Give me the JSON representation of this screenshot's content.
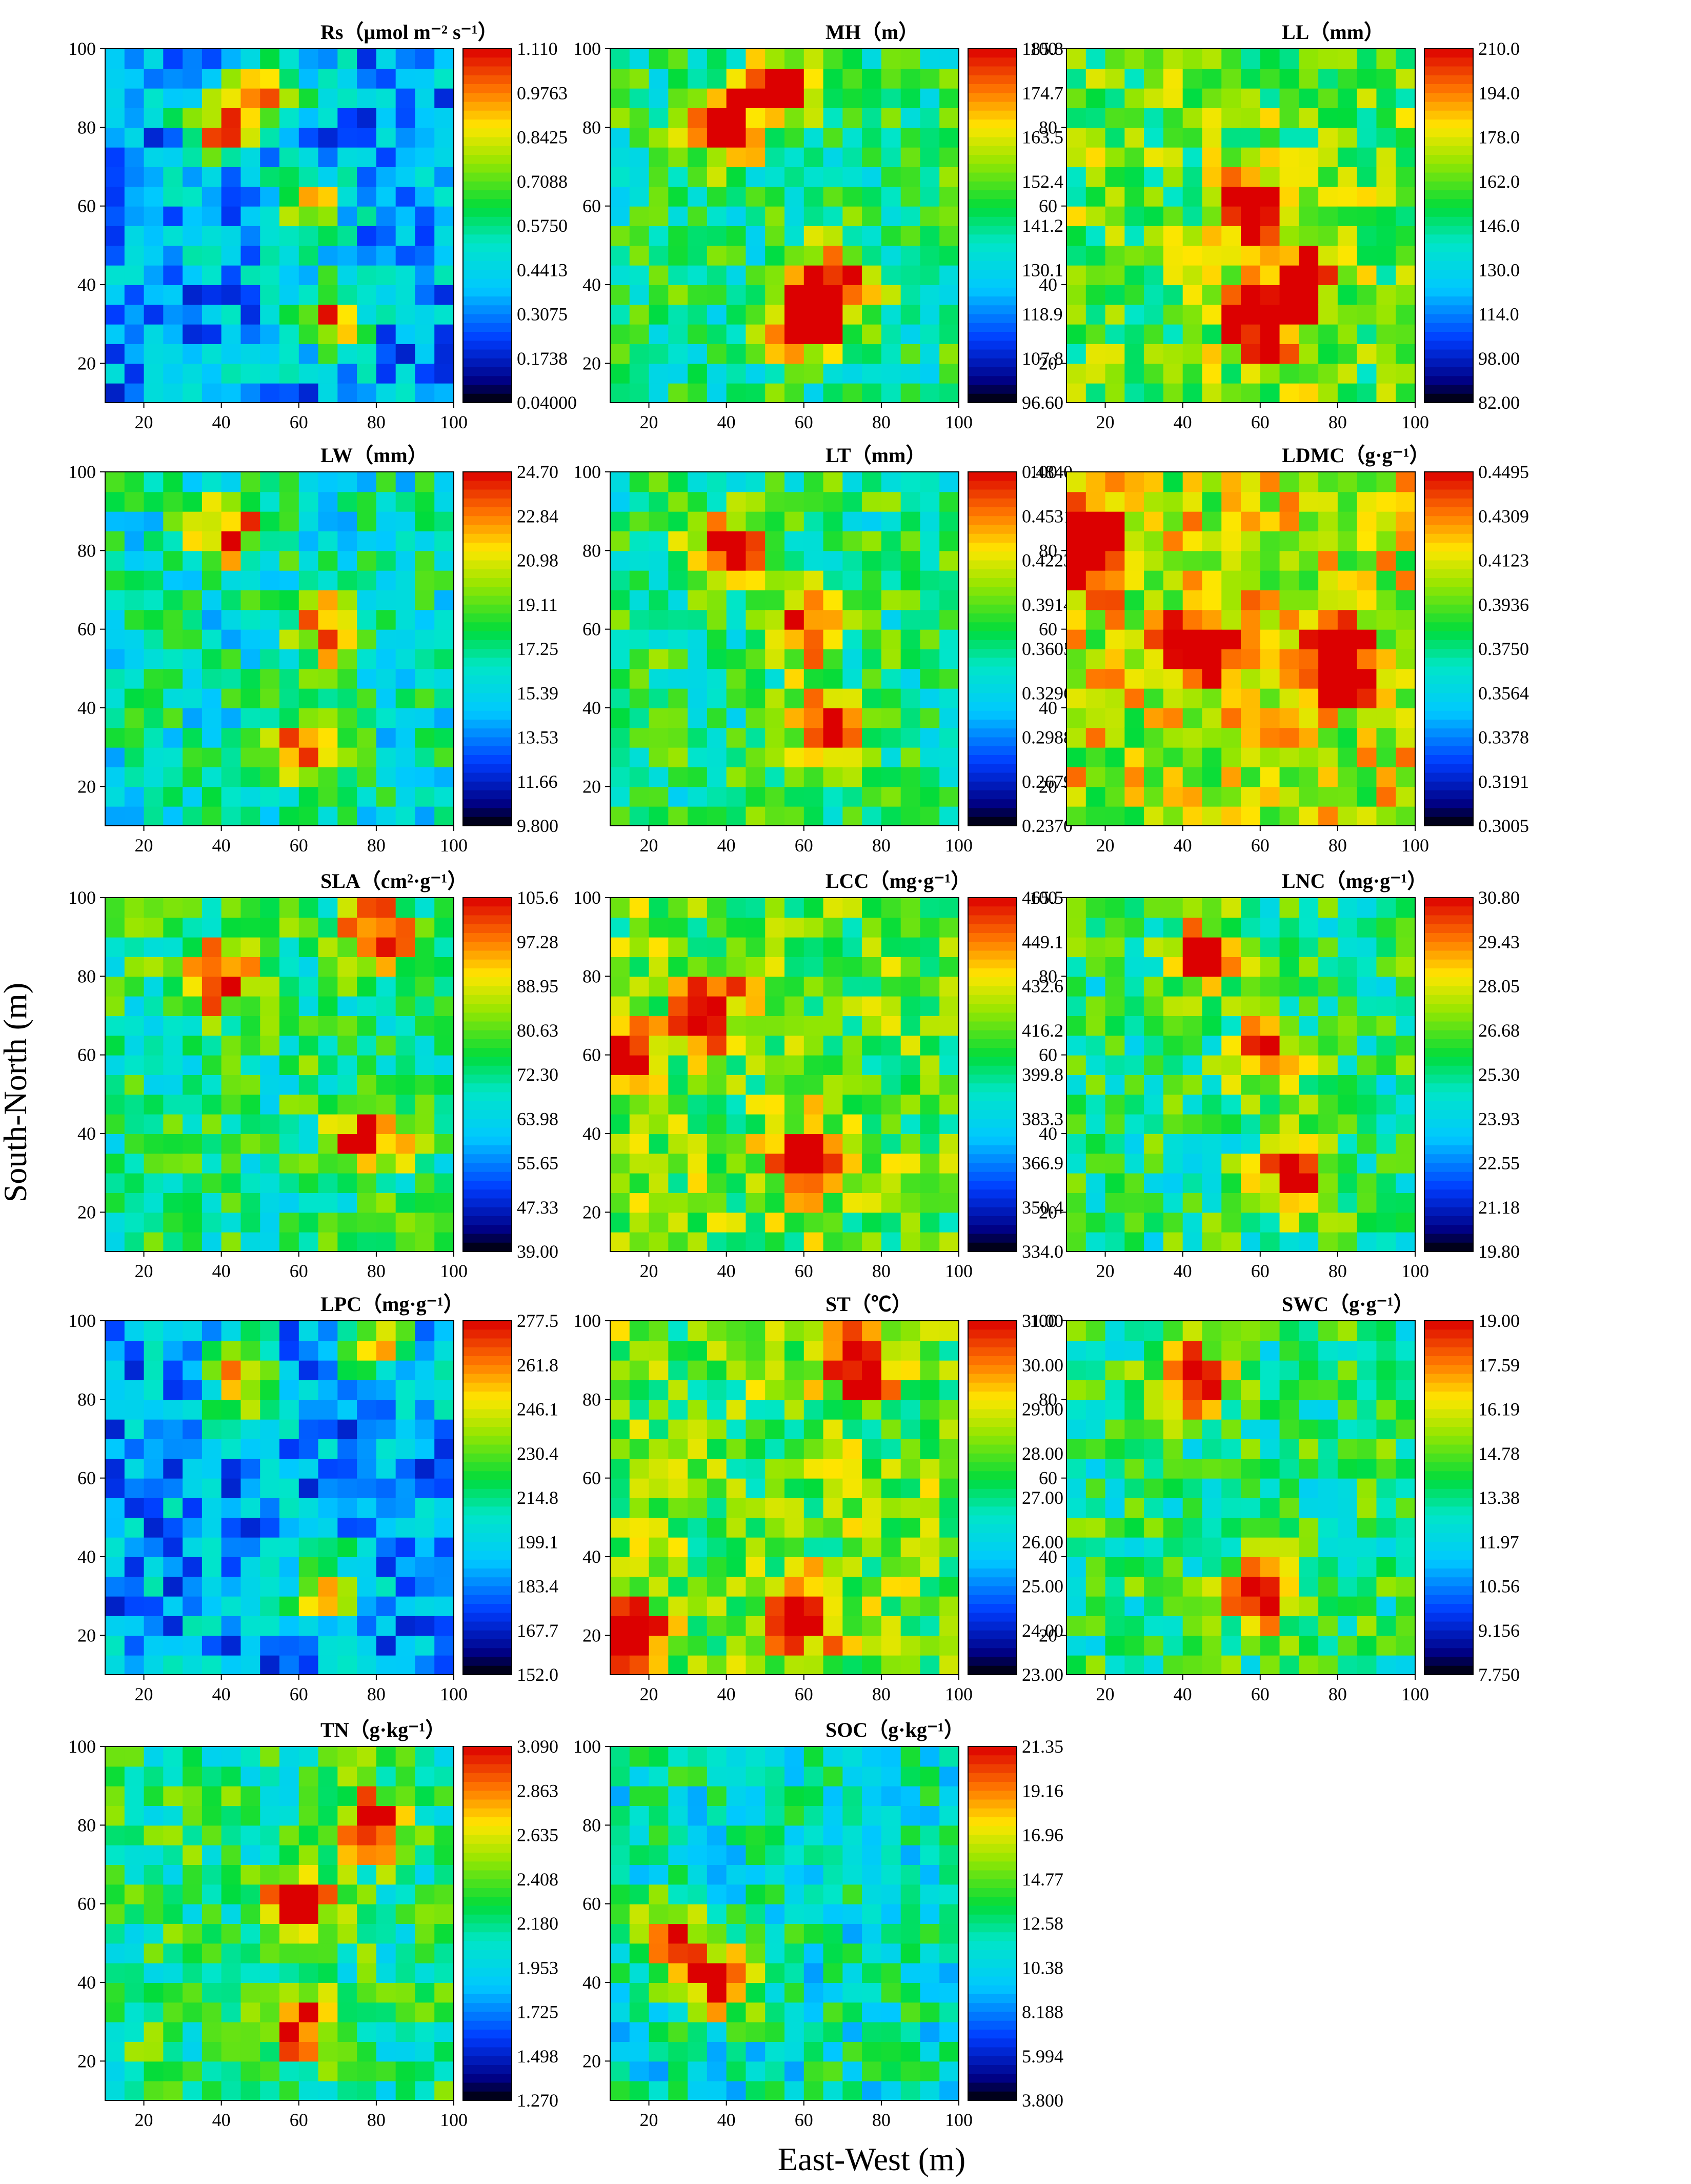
{
  "figure": {
    "y_axis_title": "South-North (m)",
    "x_axis_title": "East-West (m)"
  },
  "chart_data": [
    {
      "type": "heatmap",
      "title": "Rs（μmol m⁻² s⁻¹）",
      "x_ticks": [
        "20",
        "40",
        "60",
        "80",
        "100"
      ],
      "y_ticks": [
        "20",
        "40",
        "60",
        "80",
        "100"
      ],
      "xlim": [
        10,
        100
      ],
      "ylim": [
        10,
        100
      ],
      "colorbar_labels": [
        "1.110",
        "0.9763",
        "0.8425",
        "0.7088",
        "0.5750",
        "0.4413",
        "0.3075",
        "0.1738",
        "0.04000"
      ],
      "range": [
        0.04,
        1.11
      ],
      "pattern": "low",
      "hotspots": [
        [
          40,
          80
        ],
        [
          68,
          32
        ],
        [
          52,
          90
        ],
        [
          62,
          60
        ]
      ]
    },
    {
      "type": "heatmap",
      "title": "MH（m）",
      "x_ticks": [
        "20",
        "40",
        "60",
        "80",
        "100"
      ],
      "y_ticks": [
        "20",
        "40",
        "60",
        "80",
        "100"
      ],
      "xlim": [
        10,
        100
      ],
      "ylim": [
        10,
        100
      ],
      "colorbar_labels": [
        "185.8",
        "174.7",
        "163.5",
        "152.4",
        "141.2",
        "130.1",
        "118.9",
        "107.8",
        "96.60"
      ],
      "range": [
        96.6,
        185.8
      ],
      "pattern": "mid",
      "hotspots": [
        [
          40,
          80
        ],
        [
          55,
          90
        ],
        [
          68,
          40
        ],
        [
          60,
          30
        ]
      ]
    },
    {
      "type": "heatmap",
      "title": "LL（mm）",
      "x_ticks": [
        "20",
        "40",
        "60",
        "80",
        "100"
      ],
      "y_ticks": [
        "20",
        "40",
        "60",
        "80",
        "100"
      ],
      "xlim": [
        10,
        100
      ],
      "ylim": [
        10,
        100
      ],
      "colorbar_labels": [
        "210.0",
        "194.0",
        "178.0",
        "162.0",
        "146.0",
        "130.0",
        "114.0",
        "98.00",
        "82.00"
      ],
      "range": [
        82,
        210
      ],
      "pattern": "mid-high",
      "hotspots": [
        [
          60,
          30
        ],
        [
          70,
          40
        ],
        [
          60,
          60
        ]
      ]
    },
    {
      "type": "heatmap",
      "title": "LW（mm）",
      "x_ticks": [
        "20",
        "40",
        "60",
        "80",
        "100"
      ],
      "y_ticks": [
        "20",
        "40",
        "60",
        "80",
        "100"
      ],
      "xlim": [
        10,
        100
      ],
      "ylim": [
        10,
        100
      ],
      "colorbar_labels": [
        "24.70",
        "22.84",
        "20.98",
        "19.11",
        "17.25",
        "15.39",
        "13.53",
        "11.66",
        "9.800"
      ],
      "range": [
        9.8,
        24.7
      ],
      "pattern": "mid-low",
      "hotspots": [
        [
          42,
          85
        ],
        [
          62,
          30
        ],
        [
          68,
          60
        ]
      ]
    },
    {
      "type": "heatmap",
      "title": "LT（mm）",
      "x_ticks": [
        "20",
        "40",
        "60",
        "80",
        "100"
      ],
      "y_ticks": [
        "20",
        "40",
        "60",
        "80",
        "100"
      ],
      "xlim": [
        10,
        100
      ],
      "ylim": [
        10,
        100
      ],
      "colorbar_labels": [
        "0.4840",
        "0.4531",
        "0.4223",
        "0.3914",
        "0.3605",
        "0.3296",
        "0.2988",
        "0.2679",
        "0.2370"
      ],
      "range": [
        0.237,
        0.484
      ],
      "pattern": "mid",
      "hotspots": [
        [
          40,
          80
        ],
        [
          60,
          60
        ],
        [
          65,
          35
        ]
      ]
    },
    {
      "type": "heatmap",
      "title": "LDMC（g·g⁻¹）",
      "x_ticks": [
        "20",
        "40",
        "60",
        "80",
        "100"
      ],
      "y_ticks": [
        "20",
        "40",
        "60",
        "80",
        "100"
      ],
      "xlim": [
        10,
        100
      ],
      "ylim": [
        10,
        100
      ],
      "colorbar_labels": [
        "0.4495",
        "0.4309",
        "0.4123",
        "0.3936",
        "0.3750",
        "0.3564",
        "0.3378",
        "0.3191",
        "0.3005"
      ],
      "range": [
        0.3005,
        0.4495
      ],
      "pattern": "high",
      "hotspots": [
        [
          15,
          80
        ],
        [
          45,
          55
        ],
        [
          80,
          50
        ]
      ]
    },
    {
      "type": "heatmap",
      "title": "SLA（cm²·g⁻¹）",
      "x_ticks": [
        "20",
        "40",
        "60",
        "80",
        "100"
      ],
      "y_ticks": [
        "20",
        "40",
        "60",
        "80",
        "100"
      ],
      "xlim": [
        10,
        100
      ],
      "ylim": [
        10,
        100
      ],
      "colorbar_labels": [
        "105.6",
        "97.28",
        "88.95",
        "80.63",
        "72.30",
        "63.98",
        "55.65",
        "47.33",
        "39.00"
      ],
      "range": [
        39,
        105.6
      ],
      "pattern": "mid",
      "hotspots": [
        [
          78,
          40
        ],
        [
          80,
          90
        ],
        [
          40,
          80
        ]
      ]
    },
    {
      "type": "heatmap",
      "title": "LCC（mg·g⁻¹）",
      "x_ticks": [
        "20",
        "40",
        "60",
        "80",
        "100"
      ],
      "y_ticks": [
        "20",
        "40",
        "60",
        "80",
        "100"
      ],
      "xlim": [
        10,
        100
      ],
      "ylim": [
        10,
        100
      ],
      "colorbar_labels": [
        "465.5",
        "449.1",
        "432.6",
        "416.2",
        "399.8",
        "383.3",
        "366.9",
        "350.4",
        "334.0"
      ],
      "range": [
        334,
        465.5
      ],
      "pattern": "mid-high",
      "hotspots": [
        [
          35,
          72
        ],
        [
          62,
          33
        ],
        [
          10,
          60
        ]
      ]
    },
    {
      "type": "heatmap",
      "title": "LNC（mg·g⁻¹）",
      "x_ticks": [
        "20",
        "40",
        "60",
        "80",
        "100"
      ],
      "y_ticks": [
        "20",
        "40",
        "60",
        "80",
        "100"
      ],
      "xlim": [
        10,
        100
      ],
      "ylim": [
        10,
        100
      ],
      "colorbar_labels": [
        "30.80",
        "29.43",
        "28.05",
        "26.68",
        "25.30",
        "23.93",
        "22.55",
        "21.18",
        "19.80"
      ],
      "range": [
        19.8,
        30.8
      ],
      "pattern": "mid",
      "hotspots": [
        [
          68,
          28
        ],
        [
          62,
          60
        ],
        [
          45,
          85
        ]
      ]
    },
    {
      "type": "heatmap",
      "title": "LPC（mg·g⁻¹）",
      "x_ticks": [
        "20",
        "40",
        "60",
        "80",
        "100"
      ],
      "y_ticks": [
        "20",
        "40",
        "60",
        "80",
        "100"
      ],
      "xlim": [
        10,
        100
      ],
      "ylim": [
        10,
        100
      ],
      "colorbar_labels": [
        "277.5",
        "261.8",
        "246.1",
        "230.4",
        "214.8",
        "199.1",
        "183.4",
        "167.7",
        "152.0"
      ],
      "range": [
        152,
        277.5
      ],
      "pattern": "low",
      "hotspots": [
        [
          66,
          32
        ],
        [
          45,
          85
        ],
        [
          80,
          95
        ]
      ]
    },
    {
      "type": "heatmap",
      "title": "ST（℃）",
      "x_ticks": [
        "20",
        "40",
        "60",
        "80",
        "100"
      ],
      "y_ticks": [
        "20",
        "40",
        "60",
        "80",
        "100"
      ],
      "xlim": [
        10,
        100
      ],
      "ylim": [
        10,
        100
      ],
      "colorbar_labels": [
        "31.00",
        "30.00",
        "29.00",
        "28.00",
        "27.00",
        "26.00",
        "25.00",
        "24.00",
        "23.00"
      ],
      "range": [
        23,
        31
      ],
      "pattern": "mid-high",
      "hotspots": [
        [
          60,
          25
        ],
        [
          15,
          20
        ],
        [
          75,
          90
        ]
      ]
    },
    {
      "type": "heatmap",
      "title": "SWC（g·g⁻¹）",
      "x_ticks": [
        "20",
        "40",
        "60",
        "80",
        "100"
      ],
      "y_ticks": [
        "20",
        "40",
        "60",
        "80",
        "100"
      ],
      "xlim": [
        10,
        100
      ],
      "ylim": [
        10,
        100
      ],
      "colorbar_labels": [
        "19.00",
        "17.59",
        "16.19",
        "14.78",
        "13.38",
        "11.97",
        "10.56",
        "9.156",
        "7.750"
      ],
      "range": [
        7.75,
        19
      ],
      "pattern": "mid",
      "hotspots": [
        [
          42,
          85
        ],
        [
          60,
          30
        ]
      ]
    },
    {
      "type": "heatmap",
      "title": "TN（g·kg⁻¹）",
      "x_ticks": [
        "20",
        "40",
        "60",
        "80",
        "100"
      ],
      "y_ticks": [
        "20",
        "40",
        "60",
        "80",
        "100"
      ],
      "xlim": [
        10,
        100
      ],
      "ylim": [
        10,
        100
      ],
      "colorbar_labels": [
        "3.090",
        "2.863",
        "2.635",
        "2.408",
        "2.180",
        "1.953",
        "1.725",
        "1.498",
        "1.270"
      ],
      "range": [
        1.27,
        3.09
      ],
      "pattern": "mid",
      "hotspots": [
        [
          60,
          30
        ],
        [
          80,
          80
        ],
        [
          60,
          60
        ]
      ]
    },
    {
      "type": "heatmap",
      "title": "SOC（g·kg⁻¹）",
      "x_ticks": [
        "20",
        "40",
        "60",
        "80",
        "100"
      ],
      "y_ticks": [
        "20",
        "40",
        "60",
        "80",
        "100"
      ],
      "xlim": [
        10,
        100
      ],
      "ylim": [
        10,
        100
      ],
      "colorbar_labels": [
        "21.35",
        "19.16",
        "16.96",
        "14.77",
        "12.58",
        "10.38",
        "8.188",
        "5.994",
        "3.800"
      ],
      "range": [
        3.8,
        21.35
      ],
      "pattern": "mid-low",
      "hotspots": [
        [
          38,
          40
        ],
        [
          25,
          50
        ]
      ]
    }
  ]
}
